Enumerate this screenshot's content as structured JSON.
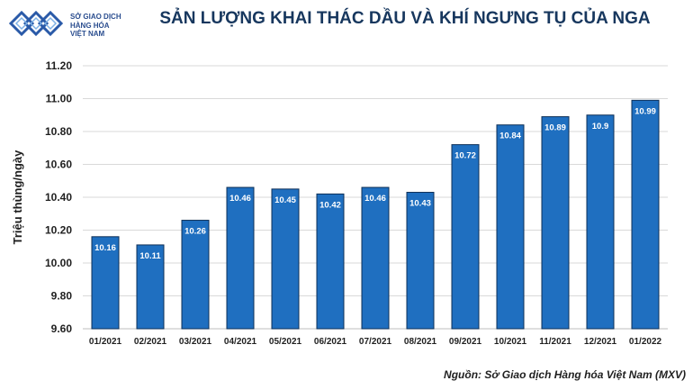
{
  "logo": {
    "line1": "SỞ GIAO DỊCH",
    "line2": "HÀNG HÓA",
    "line3": "VIỆT NAM"
  },
  "source_note": "Nguồn: Sở Giao dịch Hàng hóa Việt Nam (MXV)",
  "colors": {
    "bar": "#1f6fc0",
    "bar_stroke": "#0d2f57",
    "title": "#17375e",
    "grid": "#d9d9d9"
  },
  "chart_data": {
    "type": "bar",
    "title": "SẢN LƯỢNG KHAI THÁC DẦU VÀ KHÍ NGƯNG TỤ CỦA NGA",
    "xlabel": "",
    "ylabel": "Triệu thùng/ngày",
    "ylim": [
      9.6,
      11.2
    ],
    "yticks": [
      "9.60",
      "9.80",
      "10.00",
      "10.20",
      "10.40",
      "10.60",
      "10.80",
      "11.00",
      "11.20"
    ],
    "grid": true,
    "categories": [
      "01/2021",
      "02/2021",
      "03/2021",
      "04/2021",
      "05/2021",
      "06/2021",
      "07/2021",
      "08/2021",
      "09/2021",
      "10/2021",
      "11/2021",
      "12/2021",
      "01/2022"
    ],
    "values": [
      10.16,
      10.11,
      10.26,
      10.46,
      10.45,
      10.42,
      10.46,
      10.43,
      10.72,
      10.84,
      10.89,
      10.9,
      10.99
    ],
    "data_labels": [
      "10.16",
      "10.11",
      "10.26",
      "10.46",
      "10.45",
      "10.42",
      "10.46",
      "10.43",
      "10.72",
      "10.84",
      "10.89",
      "10.9",
      "10.99"
    ]
  }
}
